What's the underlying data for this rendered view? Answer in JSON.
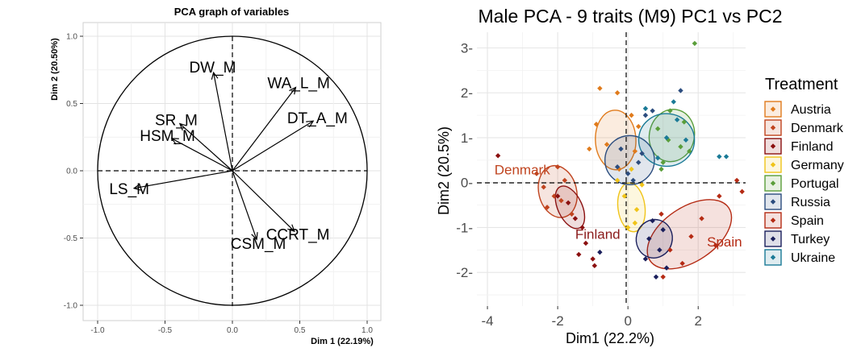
{
  "chart_data": [
    {
      "type": "scatter",
      "title": "PCA graph of variables",
      "xlabel": "Dim 1 (22.19%)",
      "ylabel": "Dim 2 (20.50%)",
      "xlim": [
        -1.0,
        1.0
      ],
      "ylim": [
        -1.0,
        1.0
      ],
      "xticks": [
        -1.0,
        -0.5,
        0.0,
        0.5,
        1.0
      ],
      "yticks": [
        -1.0,
        -0.5,
        0.0,
        0.5,
        1.0
      ],
      "xtick_labels": [
        "-1.0",
        "-0.5",
        "0.0",
        "0.5",
        "1.0"
      ],
      "ytick_labels": [
        "-1.0",
        "-0.5",
        "0.0",
        "0.5",
        "1.0"
      ],
      "grid": true,
      "unit_circle": true,
      "vectors": [
        {
          "name": "DW_M",
          "x": -0.14,
          "y": 0.73
        },
        {
          "name": "WA_L_M",
          "x": 0.47,
          "y": 0.62
        },
        {
          "name": "SR_M",
          "x": -0.39,
          "y": 0.35
        },
        {
          "name": "DT_A_M",
          "x": 0.6,
          "y": 0.37
        },
        {
          "name": "HSM_M",
          "x": -0.45,
          "y": 0.24
        },
        {
          "name": "LS_M",
          "x": -0.73,
          "y": -0.13
        },
        {
          "name": "CCRT_M",
          "x": 0.46,
          "y": -0.45
        },
        {
          "name": "CSM_M",
          "x": 0.18,
          "y": -0.51
        }
      ]
    },
    {
      "type": "scatter",
      "title": "Male PCA - 9 traits (M9) PC1 vs PC2",
      "xlabel": "Dim1 (22.2%)",
      "ylabel": "Dim2 (20.5%)",
      "xlim": [
        -4.3,
        3.35
      ],
      "ylim": [
        -2.75,
        3.35
      ],
      "xticks": [
        -4,
        -2,
        0,
        2
      ],
      "yticks": [
        -2,
        -1,
        0,
        1,
        2,
        3
      ],
      "xtick_labels": [
        "-4",
        "-2",
        "0",
        "2"
      ],
      "ytick_labels": [
        "-2-",
        "-1-",
        "0-",
        "1-",
        "2-",
        "3-"
      ],
      "grid": true,
      "legend": {
        "title": "Treatment",
        "placement": "right"
      },
      "group_labels": [
        {
          "text": "Denmark",
          "x": -3.8,
          "y": 0.18,
          "color": "#c0441f"
        },
        {
          "text": "Finland",
          "x": -1.5,
          "y": -1.25,
          "color": "#8a1a1a"
        },
        {
          "text": "Spain",
          "x": 2.25,
          "y": -1.42,
          "color": "#b52b14"
        }
      ],
      "series": [
        {
          "name": "Austria",
          "color": "#e07b1c",
          "ellipse": {
            "cx": -0.35,
            "cy": 0.95,
            "rx": 0.85,
            "ry": 0.45,
            "angle": 92
          },
          "points": [
            [
              -0.8,
              2.1
            ],
            [
              -0.3,
              2.0
            ],
            [
              -0.9,
              1.3
            ],
            [
              0.1,
              1.5
            ],
            [
              -0.6,
              0.85
            ],
            [
              0.2,
              0.7
            ],
            [
              -1.1,
              0.75
            ],
            [
              -0.25,
              0.3
            ],
            [
              0.3,
              1.25
            ]
          ]
        },
        {
          "name": "Denmark",
          "color": "#c0441f",
          "ellipse": {
            "cx": -2.0,
            "cy": -0.2,
            "rx": 0.75,
            "ry": 0.42,
            "angle": 104
          },
          "points": [
            [
              -2.6,
              0.2
            ],
            [
              -2.1,
              -0.3
            ],
            [
              -1.8,
              0.05
            ],
            [
              -2.3,
              -0.55
            ],
            [
              -1.6,
              -0.7
            ],
            [
              -2.0,
              0.35
            ],
            [
              -2.4,
              -0.1
            ],
            [
              -1.9,
              -0.4
            ]
          ]
        },
        {
          "name": "Finland",
          "color": "#8b1010",
          "ellipse": {
            "cx": -1.65,
            "cy": -0.55,
            "rx": 0.65,
            "ry": 0.27,
            "angle": 115
          },
          "points": [
            [
              -1.7,
              -0.45
            ],
            [
              -1.5,
              -0.8
            ],
            [
              -1.3,
              -1.0
            ],
            [
              -2.0,
              -0.3
            ],
            [
              -1.4,
              -1.6
            ],
            [
              -1.0,
              -1.7
            ],
            [
              -1.2,
              -1.35
            ],
            [
              -3.7,
              0.6
            ],
            [
              -0.95,
              -1.85
            ]
          ]
        },
        {
          "name": "Germany",
          "color": "#f0c419",
          "ellipse": {
            "cx": 0.1,
            "cy": -0.55,
            "rx": 0.7,
            "ry": 0.3,
            "angle": 97
          },
          "points": [
            [
              -0.1,
              -0.3
            ],
            [
              0.25,
              -0.6
            ],
            [
              0.0,
              -1.0
            ],
            [
              0.4,
              -0.05
            ],
            [
              -0.3,
              0.05
            ],
            [
              0.2,
              -0.9
            ],
            [
              0.1,
              0.3
            ]
          ]
        },
        {
          "name": "Portugal",
          "color": "#5a9e3a",
          "ellipse": {
            "cx": 1.25,
            "cy": 1.05,
            "rx": 0.75,
            "ry": 0.5,
            "angle": 78
          },
          "points": [
            [
              1.9,
              3.1
            ],
            [
              1.2,
              1.6
            ],
            [
              0.85,
              1.2
            ],
            [
              1.5,
              0.8
            ],
            [
              1.0,
              0.45
            ],
            [
              1.6,
              1.35
            ],
            [
              1.75,
              0.7
            ],
            [
              1.15,
              0.95
            ],
            [
              0.95,
              0.3
            ]
          ]
        },
        {
          "name": "Russia",
          "color": "#2b4c7e",
          "ellipse": {
            "cx": 0.05,
            "cy": 0.5,
            "rx": 0.7,
            "ry": 0.55,
            "angle": 90
          },
          "points": [
            [
              0.0,
              0.2
            ],
            [
              -0.2,
              0.75
            ],
            [
              0.3,
              0.45
            ],
            [
              0.5,
              1.5
            ],
            [
              -0.3,
              0.35
            ],
            [
              0.15,
              0.05
            ],
            [
              0.4,
              0.65
            ],
            [
              1.5,
              2.05
            ],
            [
              0.7,
              1.6
            ]
          ]
        },
        {
          "name": "Spain",
          "color": "#b52b14",
          "ellipse": {
            "cx": 1.75,
            "cy": -1.15,
            "rx": 1.35,
            "ry": 0.6,
            "angle": 34
          },
          "points": [
            [
              2.6,
              -0.3
            ],
            [
              1.8,
              -1.2
            ],
            [
              1.2,
              -1.5
            ],
            [
              2.1,
              -0.8
            ],
            [
              1.0,
              -2.1
            ],
            [
              1.55,
              -1.8
            ],
            [
              2.5,
              -1.4
            ],
            [
              3.1,
              0.05
            ],
            [
              0.95,
              -0.7
            ],
            [
              3.25,
              -0.2
            ]
          ]
        },
        {
          "name": "Turkey",
          "color": "#1a1f5c",
          "ellipse": {
            "cx": 0.75,
            "cy": -1.25,
            "rx": 0.55,
            "ry": 0.4,
            "angle": 74
          },
          "points": [
            [
              0.6,
              -1.25
            ],
            [
              0.9,
              -1.5
            ],
            [
              0.7,
              -0.85
            ],
            [
              1.0,
              -1.05
            ],
            [
              0.5,
              -1.7
            ],
            [
              0.8,
              -2.1
            ],
            [
              1.1,
              -1.9
            ],
            [
              -0.8,
              -1.55
            ]
          ]
        },
        {
          "name": "Ukraine",
          "color": "#1a7a96",
          "ellipse": {
            "cx": 1.1,
            "cy": 0.95,
            "rx": 0.75,
            "ry": 0.62,
            "angle": 86
          },
          "points": [
            [
              0.5,
              1.65
            ],
            [
              1.1,
              1.0
            ],
            [
              1.4,
              1.4
            ],
            [
              0.85,
              0.55
            ],
            [
              1.65,
              0.95
            ],
            [
              2.6,
              0.58
            ],
            [
              2.8,
              0.58
            ],
            [
              1.3,
              1.8
            ]
          ]
        }
      ]
    }
  ]
}
